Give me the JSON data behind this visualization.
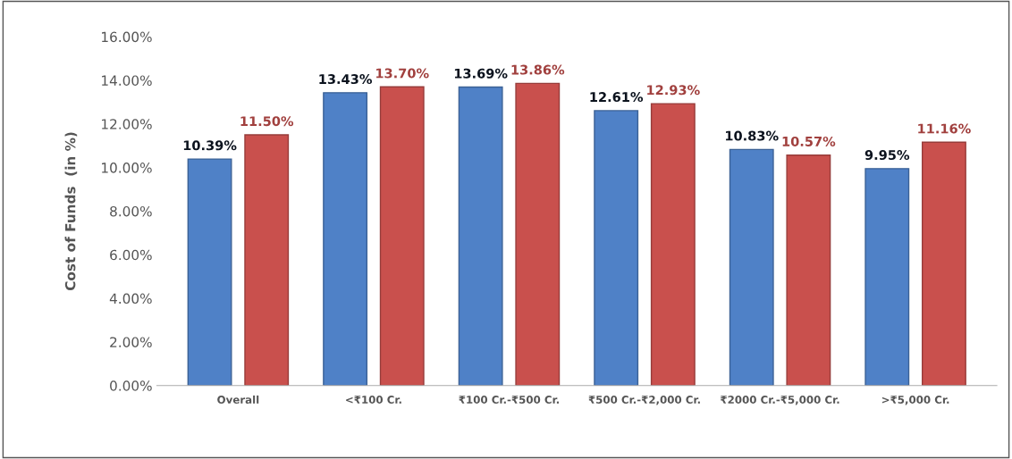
{
  "chart_data": {
    "type": "bar",
    "ylabel": "Cost of Funds  (in %)",
    "categories": [
      "Overall",
      "<₹100 Cr.",
      "₹100 Cr.-₹500 Cr.",
      "₹500 Cr.-₹2,000 Cr.",
      "₹2000 Cr.-₹5,000 Cr.",
      ">₹5,000 Cr."
    ],
    "series": [
      {
        "color": "#4f81c7",
        "values": [
          10.39,
          13.43,
          13.69,
          12.61,
          10.83,
          9.95
        ],
        "value_labels": [
          "10.39%",
          "13.43%",
          "13.69%",
          "12.61%",
          "10.83%",
          "9.95%"
        ]
      },
      {
        "color": "#c9504d",
        "values": [
          11.5,
          13.7,
          13.86,
          12.93,
          10.57,
          11.16
        ],
        "value_labels": [
          "11.50%",
          "13.70%",
          "13.86%",
          "12.93%",
          "10.57%",
          "11.16%"
        ]
      }
    ],
    "ylim": [
      0,
      16
    ],
    "yticks": [
      {
        "value": 0,
        "label": "0.00%"
      },
      {
        "value": 2,
        "label": "2.00%"
      },
      {
        "value": 4,
        "label": "4.00%"
      },
      {
        "value": 6,
        "label": "6.00%"
      },
      {
        "value": 8,
        "label": "8.00%"
      },
      {
        "value": 10,
        "label": "10.00%"
      },
      {
        "value": 12,
        "label": "12.00%"
      },
      {
        "value": 14,
        "label": "14.00%"
      },
      {
        "value": 16,
        "label": "16.00%"
      }
    ],
    "grid": false,
    "legend": false
  }
}
